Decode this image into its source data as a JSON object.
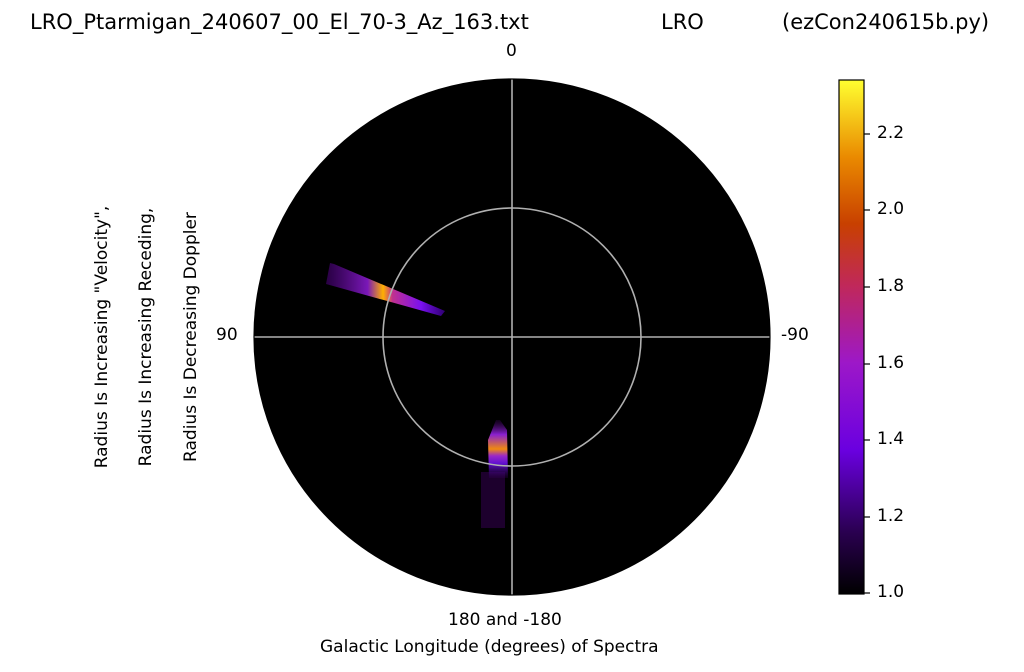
{
  "header": {
    "file_title": "LRO_Ptarmigan_240607_00_El_70-3_Az_163.txt",
    "station": "LRO",
    "program": "(ezCon240615b.py)"
  },
  "chart_data": {
    "type": "heatmap",
    "projection": "polar",
    "theta_ticks": {
      "top": "0",
      "left": "90",
      "right": "-90",
      "bottom": "180 and -180"
    },
    "xlabel": "Galactic Longitude (degrees) of Spectra",
    "ylabel_lines": [
      "Radius Is Increasing \"Velocity\",",
      "Radius Is Increasing Receding,",
      "Radius Is Decreasing Doppler"
    ],
    "grid": true,
    "colormap": "gnuplot",
    "colorbar": {
      "range": [
        1.0,
        2.35
      ],
      "ticks": [
        "1.0",
        "1.2",
        "1.4",
        "1.6",
        "1.8",
        "2.0",
        "2.2"
      ],
      "location": "right"
    },
    "features": [
      {
        "name": "streak-upper-left",
        "longitude_deg": 65,
        "peak_value": 2.25
      },
      {
        "name": "streak-bottom",
        "longitude_deg": 175,
        "peak_value": 2.1
      }
    ]
  }
}
